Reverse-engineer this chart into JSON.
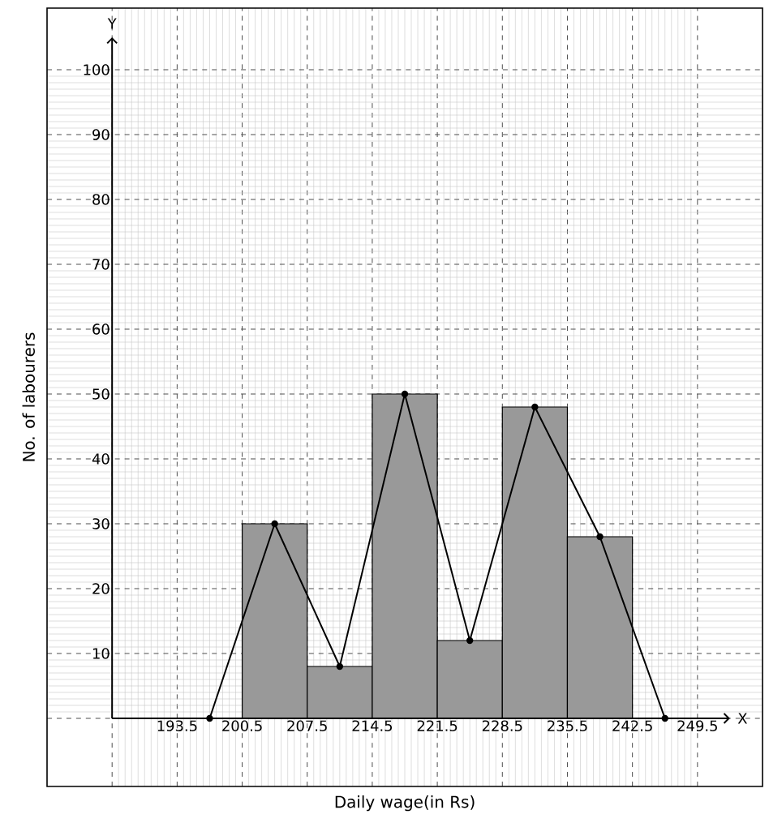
{
  "chart_data": {
    "type": "histogram",
    "xlabel": "Daily wage(in Rs)",
    "ylabel": "No. of labourers",
    "bins": [
      200.5,
      207.5,
      214.5,
      221.5,
      228.5,
      235.5,
      242.5
    ],
    "values": [
      30,
      8,
      50,
      12,
      48,
      28
    ],
    "color": "#999999",
    "series": [
      {
        "type": "line",
        "x": [
          197,
          204,
          211,
          218,
          225,
          232,
          239,
          246
        ],
        "values": [
          0,
          30,
          8,
          50,
          12,
          48,
          28,
          0
        ],
        "color": "#000000",
        "marker": "circle"
      }
    ],
    "annotations": [
      "X",
      "Y"
    ],
    "xlim": [
      179.5,
      256.5
    ],
    "ylim": [
      -10.5,
      109.5
    ],
    "xticks": [
      {
        "value": 186.5,
        "label": null
      },
      193.5,
      200.5,
      207.5,
      214.5,
      221.5,
      228.5,
      235.5,
      242.5,
      249.5
    ],
    "yticks": [
      {
        "value": 0,
        "label": null
      },
      10,
      20,
      30,
      40,
      50,
      60,
      70,
      80,
      90,
      100
    ],
    "grid": true
  }
}
